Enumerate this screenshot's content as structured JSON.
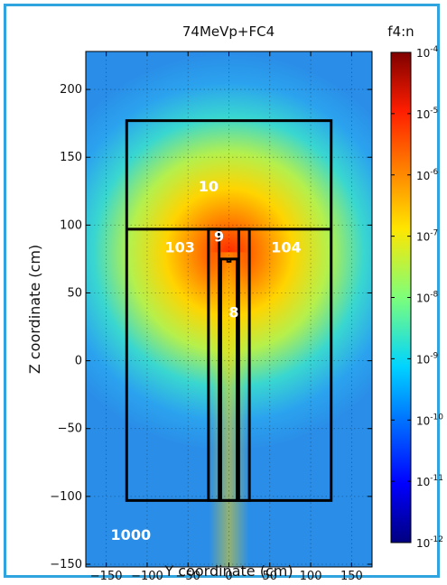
{
  "chart_data": {
    "type": "heatmap",
    "title": "74MeVp+FC4",
    "xlabel": "Y coordinate (cm)",
    "ylabel": "Z coordinate (cm)",
    "xlim": [
      -175,
      175
    ],
    "ylim": [
      -152,
      228
    ],
    "x_ticks": [
      -150,
      -100,
      -50,
      0,
      50,
      100,
      150
    ],
    "y_ticks": [
      -150,
      -100,
      -50,
      0,
      50,
      100,
      150,
      200
    ],
    "grid": true,
    "colorbar": {
      "title": "f4:n",
      "scale": "log",
      "range": [
        1e-12,
        0.0001
      ],
      "ticks": [
        {
          "mantissa": "10",
          "exp": "-4",
          "value": 0.0001
        },
        {
          "mantissa": "10",
          "exp": "-5",
          "value": 1e-05
        },
        {
          "mantissa": "10",
          "exp": "-6",
          "value": 1e-06
        },
        {
          "mantissa": "10",
          "exp": "-7",
          "value": 1e-07
        },
        {
          "mantissa": "10",
          "exp": "-8",
          "value": 1e-08
        },
        {
          "mantissa": "10",
          "exp": "-9",
          "value": 1e-09
        },
        {
          "mantissa": "10",
          "exp": "-10",
          "value": 1e-10
        },
        {
          "mantissa": "10",
          "exp": "-11",
          "value": 1e-11
        },
        {
          "mantissa": "10",
          "exp": "-12",
          "value": 1e-12
        }
      ]
    },
    "hotspot": {
      "x": 0,
      "y": 80
    },
    "geometry": {
      "outer_box": {
        "x": [
          -125,
          125
        ],
        "y": [
          -103,
          177
        ]
      },
      "divider_line": {
        "x": [
          -125,
          125
        ],
        "y": 97
      },
      "left_leg": {
        "x": [
          -25,
          -12
        ],
        "y": [
          -103,
          97
        ]
      },
      "right_leg": {
        "x": [
          12,
          25
        ],
        "y": [
          -103,
          97
        ]
      },
      "inner_tube": {
        "x": [
          -10,
          10
        ],
        "y": [
          -103,
          75
        ]
      },
      "tube_cap": {
        "x": [
          -2,
          2
        ],
        "y": [
          73,
          75
        ]
      }
    },
    "cell_labels": [
      {
        "text": "10",
        "x": -25,
        "y": 125
      },
      {
        "text": "9",
        "x": -12,
        "y": 88
      },
      {
        "text": "103",
        "x": -60,
        "y": 80
      },
      {
        "text": "104",
        "x": 70,
        "y": 80
      },
      {
        "text": "8",
        "x": 6,
        "y": 32
      },
      {
        "text": "1000",
        "x": -120,
        "y": -132
      }
    ]
  }
}
